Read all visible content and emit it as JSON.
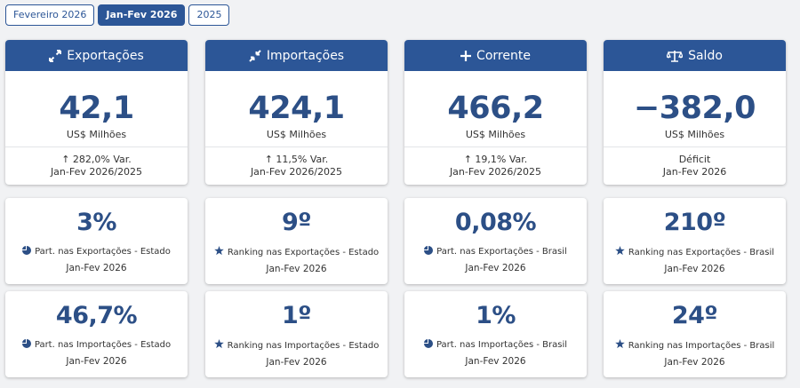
{
  "tabs": [
    "Fevereiro 2026",
    "Jan-Fev 2026",
    "2025"
  ],
  "top_cards": [
    {
      "title": "Exportações",
      "value": "42,1",
      "unit": "US$ Milhões",
      "note": "282,0% Var.",
      "period": "Jan-Fev 2026/2025",
      "icon": "expand-arrows-icon"
    },
    {
      "title": "Importações",
      "value": "424,1",
      "unit": "US$ Milhões",
      "note": "11,5% Var.",
      "period": "Jan-Fev 2026/2025",
      "icon": "compress-arrows-icon"
    },
    {
      "title": "Corrente",
      "value": "466,2",
      "unit": "US$ Milhões",
      "note": "19,1% Var.",
      "period": "Jan-Fev 2026/2025",
      "icon": "plus-icon"
    },
    {
      "title": "Saldo",
      "value": "−382,0",
      "unit": "US$ Milhões",
      "note": "Déficit",
      "period": "Jan-Fev 2026",
      "icon": "scale-icon"
    }
  ],
  "stat_cards_row2": [
    {
      "value": "3%",
      "label": "Part. nas Exportações - Estado",
      "date": "Jan-Fev 2026",
      "icon": "pie-chart-icon"
    },
    {
      "value": "9º",
      "label": "Ranking nas Exportações - Estado",
      "date": "Jan-Fev 2026",
      "icon": "star-icon"
    },
    {
      "value": "0,08%",
      "label": "Part. nas Exportações - Brasil",
      "date": "Jan-Fev 2026",
      "icon": "pie-chart-icon"
    },
    {
      "value": "210º",
      "label": "Ranking nas Exportações - Brasil",
      "date": "Jan-Fev 2026",
      "icon": "star-icon"
    }
  ],
  "stat_cards_row3": [
    {
      "value": "46,7%",
      "label": "Part. nas Importações - Estado",
      "date": "Jan-Fev 2026",
      "icon": "pie-chart-icon"
    },
    {
      "value": "1º",
      "label": "Ranking nas Importações - Estado",
      "date": "Jan-Fev 2026",
      "icon": "star-icon"
    },
    {
      "value": "1%",
      "label": "Part. nas Importações - Brasil",
      "date": "Jan-Fev 2026",
      "icon": "pie-chart-icon"
    },
    {
      "value": "24º",
      "label": "Ranking nas Importações - Brasil",
      "date": "Jan-Fev 2026",
      "icon": "star-icon"
    }
  ],
  "colors": {
    "accent": "#2c5697",
    "value_text": "#2c4f86",
    "background": "#f1f2f4"
  }
}
